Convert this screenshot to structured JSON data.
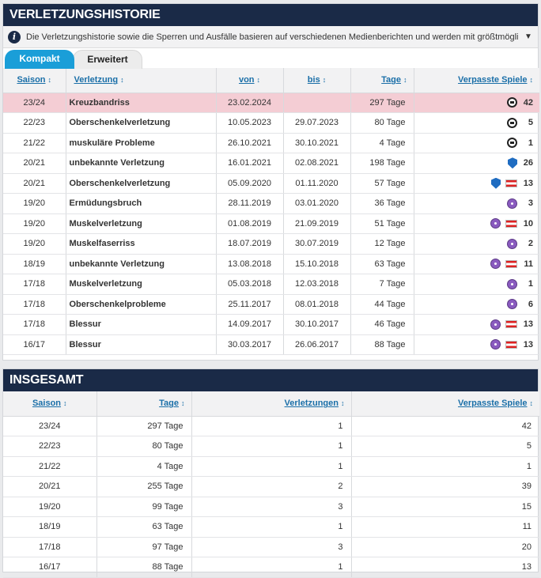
{
  "history": {
    "title": "Verletzungshistorie",
    "info": "Die Verletzungshistorie sowie die Sperren und Ausfälle basieren auf verschiedenen Medienberichten und werden mit größtmöglicher Sorgfalt ...",
    "tabs": [
      {
        "label": "Kompakt",
        "active": true
      },
      {
        "label": "Erweitert",
        "active": false
      }
    ],
    "headers": [
      "Saison",
      "Verletzung",
      "von",
      "bis",
      "Tage",
      "Verpasste Spiele"
    ],
    "rows": [
      {
        "season": "23/24",
        "injury": "Kreuzbandriss",
        "from": "23.02.2024",
        "to": "",
        "days": "297 Tage",
        "clubs": [
          "RB Leipzig"
        ],
        "games": "42",
        "highlight": true
      },
      {
        "season": "22/23",
        "injury": "Oberschenkelverletzung",
        "from": "10.05.2023",
        "to": "29.07.2023",
        "days": "80 Tage",
        "clubs": [
          "RB Leipzig"
        ],
        "games": "5",
        "highlight": false
      },
      {
        "season": "21/22",
        "injury": "muskuläre Probleme",
        "from": "26.10.2021",
        "to": "30.10.2021",
        "days": "4 Tage",
        "clubs": [
          "RB Leipzig"
        ],
        "games": "1",
        "highlight": false
      },
      {
        "season": "20/21",
        "injury": "unbekannte Verletzung",
        "from": "16.01.2021",
        "to": "02.08.2021",
        "days": "198 Tage",
        "clubs": [
          "TSG Hoffenheim"
        ],
        "games": "26",
        "highlight": false
      },
      {
        "season": "20/21",
        "injury": "Oberschenkelverletzung",
        "from": "05.09.2020",
        "to": "01.11.2020",
        "days": "57 Tage",
        "clubs": [
          "TSG Hoffenheim",
          "Österreich"
        ],
        "games": "13",
        "highlight": false
      },
      {
        "season": "19/20",
        "injury": "Ermüdungsbruch",
        "from": "28.11.2019",
        "to": "03.01.2020",
        "days": "36 Tage",
        "clubs": [
          "FK Austria Wien"
        ],
        "games": "3",
        "highlight": false
      },
      {
        "season": "19/20",
        "injury": "Muskelverletzung",
        "from": "01.08.2019",
        "to": "21.09.2019",
        "days": "51 Tage",
        "clubs": [
          "FK Austria Wien",
          "Österreich"
        ],
        "games": "10",
        "highlight": false
      },
      {
        "season": "19/20",
        "injury": "Muskelfaserriss",
        "from": "18.07.2019",
        "to": "30.07.2019",
        "days": "12 Tage",
        "clubs": [
          "FK Austria Wien"
        ],
        "games": "2",
        "highlight": false
      },
      {
        "season": "18/19",
        "injury": "unbekannte Verletzung",
        "from": "13.08.2018",
        "to": "15.10.2018",
        "days": "63 Tage",
        "clubs": [
          "FK Austria Wien",
          "Österreich"
        ],
        "games": "11",
        "highlight": false
      },
      {
        "season": "17/18",
        "injury": "Muskelverletzung",
        "from": "05.03.2018",
        "to": "12.03.2018",
        "days": "7 Tage",
        "clubs": [
          "FK Austria Wien"
        ],
        "games": "1",
        "highlight": false
      },
      {
        "season": "17/18",
        "injury": "Oberschenkelprobleme",
        "from": "25.11.2017",
        "to": "08.01.2018",
        "days": "44 Tage",
        "clubs": [
          "FK Austria Wien"
        ],
        "games": "6",
        "highlight": false
      },
      {
        "season": "17/18",
        "injury": "Blessur",
        "from": "14.09.2017",
        "to": "30.10.2017",
        "days": "46 Tage",
        "clubs": [
          "FK Austria Wien",
          "Österreich"
        ],
        "games": "13",
        "highlight": false
      },
      {
        "season": "16/17",
        "injury": "Blessur",
        "from": "30.03.2017",
        "to": "26.06.2017",
        "days": "88 Tage",
        "clubs": [
          "FK Austria Wien",
          "Österreich"
        ],
        "games": "13",
        "highlight": false
      }
    ]
  },
  "totals": {
    "title": "Insgesamt",
    "headers": [
      "Saison",
      "Tage",
      "Verletzungen",
      "Verpasste Spiele"
    ],
    "rows": [
      {
        "season": "23/24",
        "days": "297 Tage",
        "injuries": "1",
        "games": "42"
      },
      {
        "season": "22/23",
        "days": "80 Tage",
        "injuries": "1",
        "games": "5"
      },
      {
        "season": "21/22",
        "days": "4 Tage",
        "injuries": "1",
        "games": "1"
      },
      {
        "season": "20/21",
        "days": "255 Tage",
        "injuries": "2",
        "games": "39"
      },
      {
        "season": "19/20",
        "days": "99 Tage",
        "injuries": "3",
        "games": "15"
      },
      {
        "season": "18/19",
        "days": "63 Tage",
        "injuries": "1",
        "games": "11"
      },
      {
        "season": "17/18",
        "days": "97 Tage",
        "injuries": "3",
        "games": "20"
      },
      {
        "season": "16/17",
        "days": "88 Tage",
        "injuries": "1",
        "games": "13"
      }
    ]
  },
  "icons": {
    "info": "info-icon",
    "expand": "chevron-down-icon",
    "sort": "sort-arrows-icon"
  },
  "colors": {
    "header_bg": "#1a2a47",
    "accent": "#1a9ed8",
    "highlight_row": "#f4cdd4",
    "link": "#1a6fa8"
  }
}
